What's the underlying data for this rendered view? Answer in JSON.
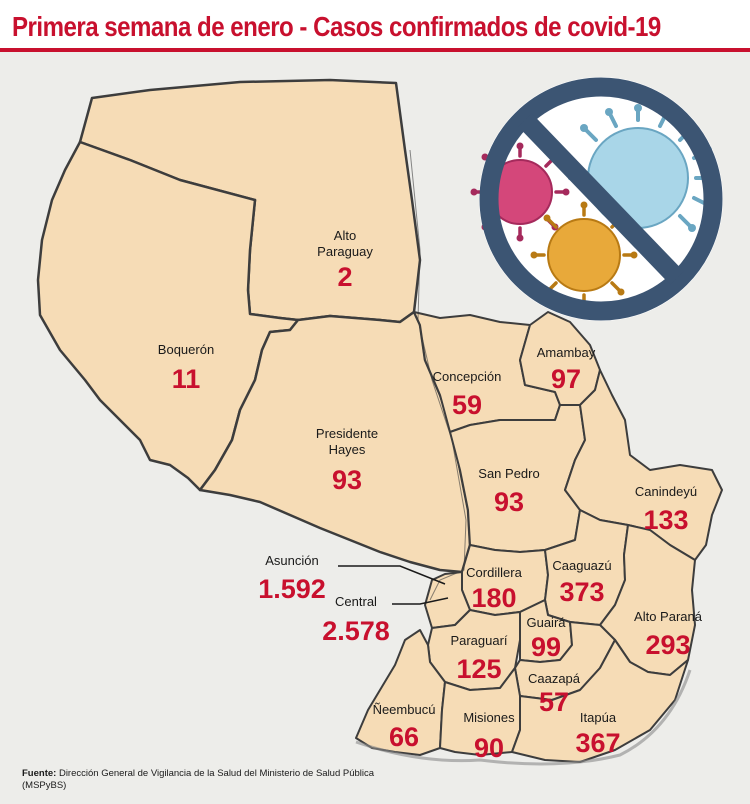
{
  "title": "Primera semana de enero - Casos confirmados de covid-19",
  "colors": {
    "land": "#f6dcb6",
    "border": "#3d3d3d",
    "accent": "#c8102e",
    "number": "#c8102e"
  },
  "icon": "no-virus-icon",
  "regions": [
    {
      "id": "alto-paraguay",
      "name": "Alto Paraguay",
      "name_lines": [
        "Alto",
        "Paraguay"
      ],
      "cases": "2"
    },
    {
      "id": "boqueron",
      "name": "Boquerón",
      "name_lines": [
        "Boquerón"
      ],
      "cases": "11"
    },
    {
      "id": "presidente-hayes",
      "name": "Presidente Hayes",
      "name_lines": [
        "Presidente",
        "Hayes"
      ],
      "cases": "93"
    },
    {
      "id": "concepcion",
      "name": "Concepción",
      "name_lines": [
        "Concepción"
      ],
      "cases": "59"
    },
    {
      "id": "amambay",
      "name": "Amambay",
      "name_lines": [
        "Amambay"
      ],
      "cases": "97"
    },
    {
      "id": "san-pedro",
      "name": "San Pedro",
      "name_lines": [
        "San Pedro"
      ],
      "cases": "93"
    },
    {
      "id": "canindeyu",
      "name": "Canindeyú",
      "name_lines": [
        "Canindeyú"
      ],
      "cases": "133"
    },
    {
      "id": "asuncion",
      "name": "Asunción",
      "name_lines": [
        "Asunción"
      ],
      "cases": "1.592"
    },
    {
      "id": "central",
      "name": "Central",
      "name_lines": [
        "Central"
      ],
      "cases": "2.578"
    },
    {
      "id": "cordillera",
      "name": "Cordillera",
      "name_lines": [
        "Cordillera"
      ],
      "cases": "180"
    },
    {
      "id": "caaguazu",
      "name": "Caaguazú",
      "name_lines": [
        "Caaguazú"
      ],
      "cases": "373"
    },
    {
      "id": "alto-parana",
      "name": "Alto Paraná",
      "name_lines": [
        "Alto Paraná"
      ],
      "cases": "293"
    },
    {
      "id": "guaira",
      "name": "Guairá",
      "name_lines": [
        "Guairá"
      ],
      "cases": "99"
    },
    {
      "id": "paraguari",
      "name": "Paraguarí",
      "name_lines": [
        "Paraguarí"
      ],
      "cases": "125"
    },
    {
      "id": "caazapa",
      "name": "Caazapá",
      "name_lines": [
        "Caazapá"
      ],
      "cases": "57"
    },
    {
      "id": "neembucu",
      "name": "Ñeembucú",
      "name_lines": [
        "Ñeembucú"
      ],
      "cases": "66"
    },
    {
      "id": "misiones",
      "name": "Misiones",
      "name_lines": [
        "Misiones"
      ],
      "cases": "90"
    },
    {
      "id": "itapua",
      "name": "Itapúa",
      "name_lines": [
        "Itapúa"
      ],
      "cases": "367"
    }
  ],
  "source": {
    "label": "Fuente:",
    "text": "Dirección General de Vigilancia de la Salud del Ministerio de Salud Pública (MSPyBS)"
  }
}
